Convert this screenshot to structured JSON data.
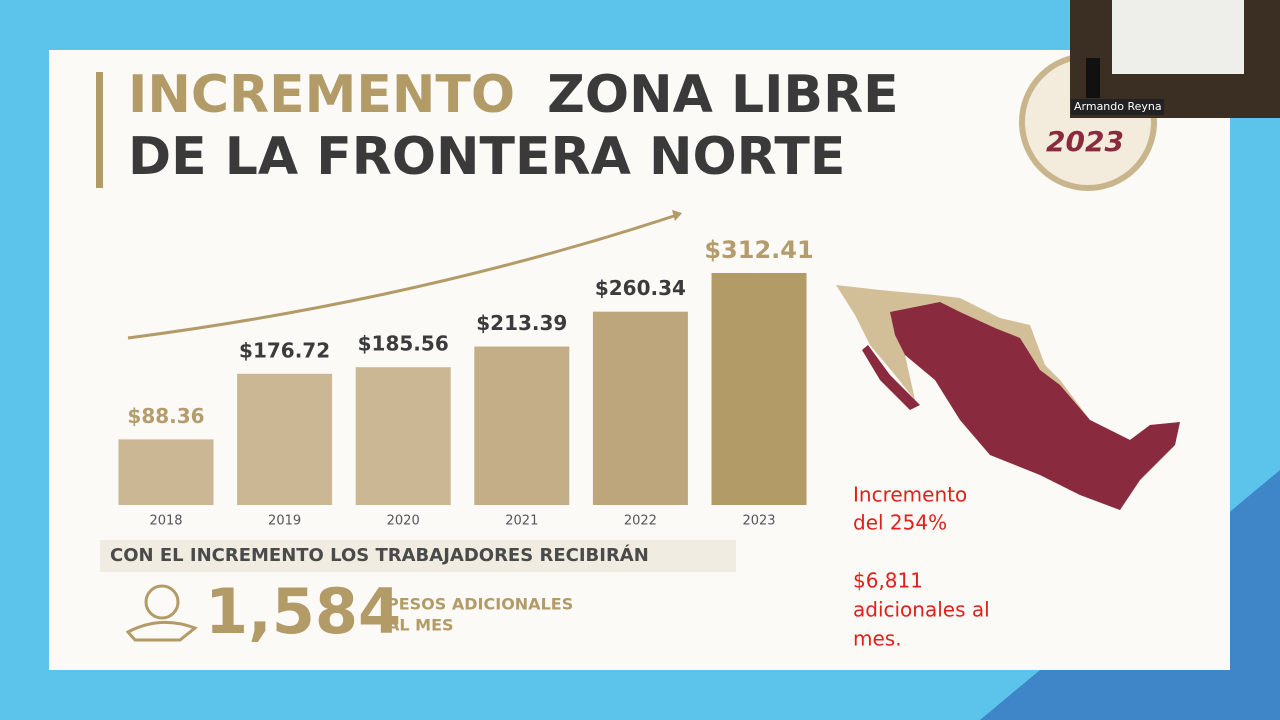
{
  "slide": {
    "title_highlight": "INCREMENTO",
    "title_rest": "ZONA LIBRE",
    "title_line2": "DE LA FRONTERA NORTE",
    "logo_year": "2023"
  },
  "chart_data": {
    "type": "bar",
    "categories": [
      "2018",
      "2019",
      "2020",
      "2021",
      "2022",
      "2023"
    ],
    "values": [
      88.36,
      176.72,
      185.56,
      213.39,
      260.34,
      312.41
    ],
    "value_labels": [
      "$88.36",
      "$176.72",
      "$185.56",
      "$213.39",
      "$260.34",
      "$312.41"
    ],
    "colors": [
      "#cbb794",
      "#cbb794",
      "#cbb794",
      "#c4ae88",
      "#bda57c",
      "#b39b68"
    ],
    "label_colors": [
      "#b49c6c",
      "#3b3b3b",
      "#3b3b3b",
      "#3b3b3b",
      "#3b3b3b",
      "#b49c6c"
    ]
  },
  "summary": {
    "heading": "CON EL INCREMENTO LOS TRABAJADORES RECIBIRÁN",
    "amount": "1,584",
    "unit_lines": [
      "PESOS ADICIONALES",
      "AL MES"
    ]
  },
  "notes": {
    "increase": [
      "Incremento",
      "del 254%"
    ],
    "extra": [
      "$6,811",
      "adicionales al",
      "mes."
    ]
  },
  "video": {
    "speaker": "Armando Reyna"
  }
}
